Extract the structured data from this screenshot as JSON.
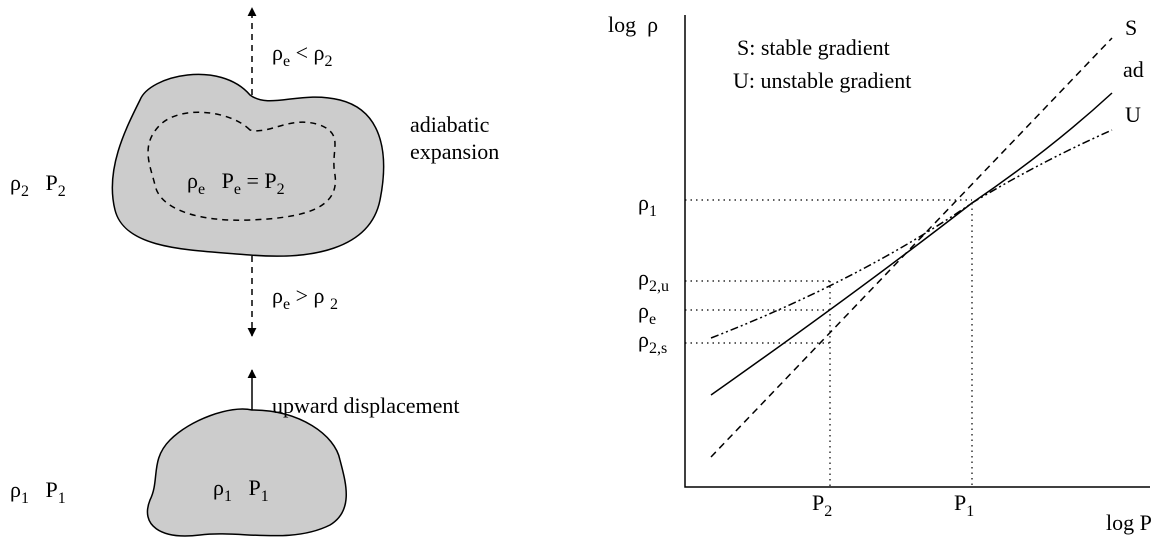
{
  "left": {
    "upper_arrow_label": [
      "ρ",
      "e",
      " < ρ",
      "2"
    ],
    "lower_arrow_label": [
      "ρ",
      "e",
      " > ρ ",
      "2"
    ],
    "inner_label": [
      "ρ",
      "e",
      "   P",
      "e",
      " = P",
      "2"
    ],
    "side_upper_label": [
      "ρ",
      "2",
      "   P",
      "2"
    ],
    "side_lower_label": [
      "ρ",
      "1",
      "   P",
      "1"
    ],
    "small_blob_label": [
      "ρ",
      "1",
      "   P",
      "1"
    ],
    "expansion_label": [
      "adiabatic",
      "expansion"
    ],
    "displacement_label": "upward displacement"
  },
  "right": {
    "y_axis_label": "log  ρ",
    "x_axis_label": "log P",
    "legend": [
      "S: stable gradient",
      "U: unstable gradient"
    ],
    "curve_labels": {
      "S": "S",
      "ad": "ad",
      "U": "U"
    },
    "y_labels": [
      [
        "ρ",
        "1"
      ],
      [
        "ρ",
        "2,u"
      ],
      [
        "ρ",
        "e"
      ],
      [
        "ρ",
        "2,s"
      ]
    ],
    "x_labels": [
      [
        "P",
        "2"
      ],
      [
        "P",
        "1"
      ]
    ]
  }
}
